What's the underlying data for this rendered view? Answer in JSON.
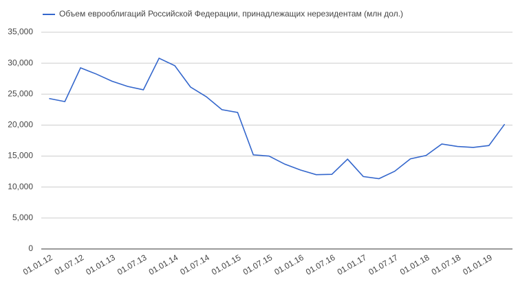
{
  "chart_data": {
    "type": "line",
    "legend_position": "top",
    "categories": [
      "01.01.12",
      null,
      "01.07.12",
      null,
      "01.01.13",
      null,
      "01.07.13",
      null,
      "01.01.14",
      null,
      "01.07.14",
      null,
      "01.01.15",
      null,
      "01.07.15",
      null,
      "01.01.16",
      null,
      "01.07.16",
      null,
      "01.01.17",
      null,
      "01.07.17",
      null,
      "01.01.18",
      null,
      "01.07.18",
      null,
      "01.01.19",
      null
    ],
    "series": [
      {
        "name": "Объем еврооблигаций Российской Федерации, принадлежащих нерезидентам (млн дол.)",
        "color": "#3366cc",
        "values": [
          24300,
          23800,
          29250,
          28250,
          27100,
          26250,
          25700,
          30800,
          29600,
          26150,
          24600,
          22500,
          22050,
          15200,
          15000,
          13700,
          12750,
          12000,
          12050,
          14500,
          11700,
          11350,
          12550,
          14550,
          15100,
          16950,
          16550,
          16400,
          16700,
          20150
        ]
      }
    ],
    "ylim": [
      0,
      35000
    ],
    "yticks": [
      0,
      {
        "value": 5000,
        "label": "5,000"
      },
      {
        "value": 10000,
        "label": "10,000"
      },
      {
        "value": 15000,
        "label": "15,000"
      },
      {
        "value": 20000,
        "label": "20,000"
      },
      {
        "value": 25000,
        "label": "25,000"
      },
      {
        "value": 30000,
        "label": "30,000"
      },
      {
        "value": 35000,
        "label": "35,000"
      }
    ],
    "grid": true
  }
}
